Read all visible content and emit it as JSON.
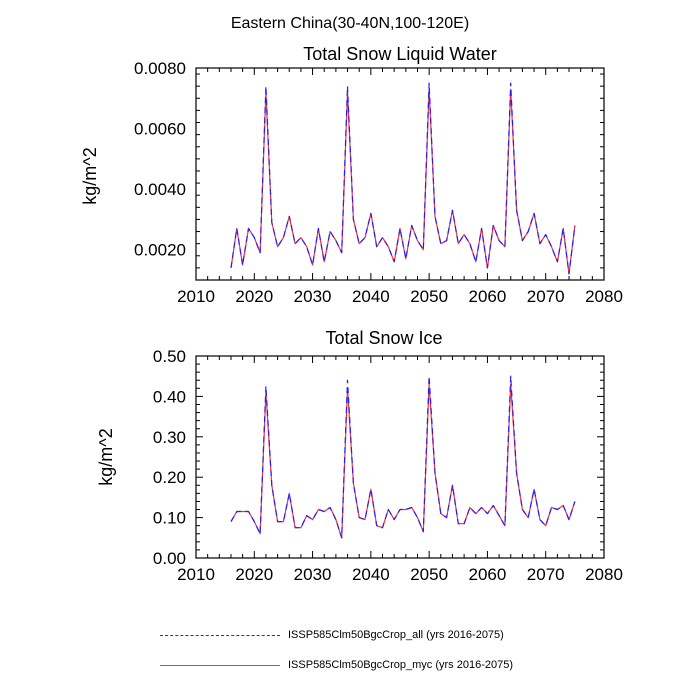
{
  "figure": {
    "suptitle": "Eastern China(30-40N,100-120E)",
    "legend": [
      {
        "label": "ISSP585Clm50BgcCrop_all (yrs 2016-2075)",
        "color": "#2020ff",
        "style": "dashed"
      },
      {
        "label": "ISSP585Clm50BgcCrop_myc (yrs 2016-2075)",
        "color": "#ff3030",
        "style": "solid"
      }
    ]
  },
  "chart_data": [
    {
      "type": "line",
      "title": "Total Snow Liquid Water",
      "xlabel": "",
      "ylabel": "kg/m^2",
      "xlim": [
        2010,
        2080
      ],
      "ylim": [
        0.001,
        0.008
      ],
      "xticks": [
        2010,
        2020,
        2030,
        2040,
        2050,
        2060,
        2070,
        2080
      ],
      "xtick_labels": [
        "2010",
        "2020",
        "2030",
        "2040",
        "2050",
        "2060",
        "2070",
        "2080"
      ],
      "yticks": [
        0.002,
        0.004,
        0.006,
        0.008
      ],
      "ytick_labels": [
        "0.0020",
        "0.0040",
        "0.0060",
        "0.0080"
      ],
      "x": [
        2016,
        2017,
        2018,
        2019,
        2020,
        2021,
        2022,
        2023,
        2024,
        2025,
        2026,
        2027,
        2028,
        2029,
        2030,
        2031,
        2032,
        2033,
        2034,
        2035,
        2036,
        2037,
        2038,
        2039,
        2040,
        2041,
        2042,
        2043,
        2044,
        2045,
        2046,
        2047,
        2048,
        2049,
        2050,
        2051,
        2052,
        2053,
        2054,
        2055,
        2056,
        2057,
        2058,
        2059,
        2060,
        2061,
        2062,
        2063,
        2064,
        2065,
        2066,
        2067,
        2068,
        2069,
        2070,
        2071,
        2072,
        2073,
        2074,
        2075
      ],
      "series": [
        {
          "name": "ISSP585Clm50BgcCrop_all (yrs 2016-2075)",
          "color": "#2020ff",
          "style": "dashed",
          "values": [
            0.0014,
            0.0027,
            0.0015,
            0.0027,
            0.0024,
            0.0019,
            0.0074,
            0.0029,
            0.0021,
            0.0024,
            0.0031,
            0.0022,
            0.0024,
            0.0021,
            0.0015,
            0.0027,
            0.0016,
            0.0026,
            0.0023,
            0.0019,
            0.0074,
            0.003,
            0.0022,
            0.0024,
            0.0032,
            0.0021,
            0.0024,
            0.0021,
            0.0016,
            0.0027,
            0.0017,
            0.0028,
            0.0023,
            0.002,
            0.0075,
            0.0031,
            0.0022,
            0.0023,
            0.0033,
            0.0022,
            0.0025,
            0.0022,
            0.0016,
            0.0027,
            0.0014,
            0.0028,
            0.0023,
            0.0021,
            0.0075,
            0.0033,
            0.0023,
            0.0026,
            0.0032,
            0.0022,
            0.0025,
            0.0021,
            0.0016,
            0.0027,
            0.0012,
            0.0028
          ]
        },
        {
          "name": "ISSP585Clm50BgcCrop_myc (yrs 2016-2075)",
          "color": "#ff3030",
          "style": "solid",
          "values": [
            0.0014,
            0.0027,
            0.0015,
            0.0027,
            0.0024,
            0.0019,
            0.0072,
            0.0029,
            0.0021,
            0.0024,
            0.0031,
            0.0022,
            0.0024,
            0.0021,
            0.0015,
            0.0027,
            0.0016,
            0.0026,
            0.0023,
            0.0019,
            0.0072,
            0.003,
            0.0022,
            0.0024,
            0.0032,
            0.0021,
            0.0024,
            0.0021,
            0.0016,
            0.0027,
            0.0017,
            0.0028,
            0.0023,
            0.002,
            0.0073,
            0.0031,
            0.0022,
            0.0023,
            0.0033,
            0.0022,
            0.0025,
            0.0022,
            0.0016,
            0.0027,
            0.0014,
            0.0028,
            0.0023,
            0.0021,
            0.0073,
            0.0033,
            0.0023,
            0.0026,
            0.0032,
            0.0022,
            0.0025,
            0.0021,
            0.0016,
            0.0027,
            0.0012,
            0.0028
          ]
        }
      ],
      "grid": false
    },
    {
      "type": "line",
      "title": "Total Snow Ice",
      "xlabel": "",
      "ylabel": "kg/m^2",
      "xlim": [
        2010,
        2080
      ],
      "ylim": [
        0.0,
        0.5
      ],
      "xticks": [
        2010,
        2020,
        2030,
        2040,
        2050,
        2060,
        2070,
        2080
      ],
      "xtick_labels": [
        "2010",
        "2020",
        "2030",
        "2040",
        "2050",
        "2060",
        "2070",
        "2080"
      ],
      "yticks": [
        0.0,
        0.1,
        0.2,
        0.3,
        0.4,
        0.5
      ],
      "ytick_labels": [
        "0.00",
        "0.10",
        "0.20",
        "0.30",
        "0.40",
        "0.50"
      ],
      "x": [
        2016,
        2017,
        2018,
        2019,
        2020,
        2021,
        2022,
        2023,
        2024,
        2025,
        2026,
        2027,
        2028,
        2029,
        2030,
        2031,
        2032,
        2033,
        2034,
        2035,
        2036,
        2037,
        2038,
        2039,
        2040,
        2041,
        2042,
        2043,
        2044,
        2045,
        2046,
        2047,
        2048,
        2049,
        2050,
        2051,
        2052,
        2053,
        2054,
        2055,
        2056,
        2057,
        2058,
        2059,
        2060,
        2061,
        2062,
        2063,
        2064,
        2065,
        2066,
        2067,
        2068,
        2069,
        2070,
        2071,
        2072,
        2073,
        2074,
        2075
      ],
      "series": [
        {
          "name": "ISSP585Clm50BgcCrop_all (yrs 2016-2075)",
          "color": "#2020ff",
          "style": "dashed",
          "values": [
            0.09,
            0.115,
            0.115,
            0.115,
            0.09,
            0.06,
            0.425,
            0.18,
            0.09,
            0.09,
            0.16,
            0.075,
            0.075,
            0.105,
            0.095,
            0.12,
            0.115,
            0.125,
            0.095,
            0.05,
            0.44,
            0.185,
            0.1,
            0.095,
            0.17,
            0.08,
            0.075,
            0.12,
            0.095,
            0.12,
            0.12,
            0.125,
            0.1,
            0.065,
            0.45,
            0.21,
            0.11,
            0.1,
            0.18,
            0.085,
            0.085,
            0.125,
            0.11,
            0.125,
            0.11,
            0.13,
            0.105,
            0.08,
            0.45,
            0.21,
            0.12,
            0.1,
            0.17,
            0.095,
            0.08,
            0.125,
            0.12,
            0.13,
            0.095,
            0.14
          ]
        },
        {
          "name": "ISSP585Clm50BgcCrop_myc (yrs 2016-2075)",
          "color": "#ff3030",
          "style": "solid",
          "values": [
            0.09,
            0.115,
            0.115,
            0.115,
            0.09,
            0.06,
            0.41,
            0.18,
            0.09,
            0.09,
            0.16,
            0.075,
            0.075,
            0.105,
            0.095,
            0.12,
            0.115,
            0.125,
            0.095,
            0.05,
            0.42,
            0.185,
            0.1,
            0.095,
            0.17,
            0.08,
            0.075,
            0.12,
            0.095,
            0.12,
            0.12,
            0.125,
            0.1,
            0.065,
            0.43,
            0.21,
            0.11,
            0.1,
            0.18,
            0.085,
            0.085,
            0.125,
            0.11,
            0.125,
            0.11,
            0.13,
            0.105,
            0.08,
            0.43,
            0.21,
            0.12,
            0.1,
            0.17,
            0.095,
            0.08,
            0.125,
            0.12,
            0.13,
            0.095,
            0.14
          ]
        }
      ],
      "grid": false
    }
  ]
}
